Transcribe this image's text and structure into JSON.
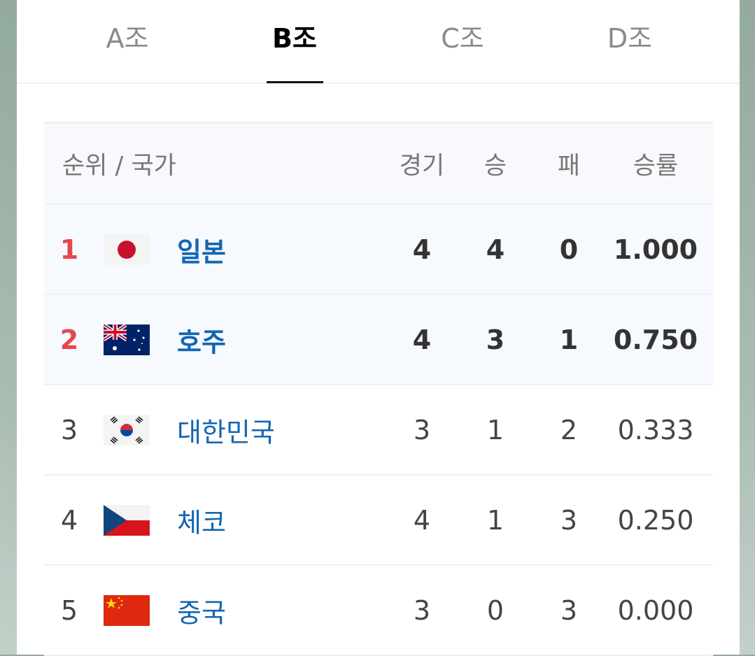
{
  "tabs": [
    {
      "label": "A조"
    },
    {
      "label": "B조",
      "active": true
    },
    {
      "label": "C조"
    },
    {
      "label": "D조"
    }
  ],
  "table": {
    "headers": {
      "team": "순위 / 국가",
      "games": "경기",
      "wins": "승",
      "losses": "패",
      "pct": "승률"
    },
    "rows": [
      {
        "rank": "1",
        "flag": "japan-flag",
        "name": "일본",
        "games": "4",
        "wins": "4",
        "losses": "0",
        "pct": "1.000",
        "highlight": true
      },
      {
        "rank": "2",
        "flag": "australia-flag",
        "name": "호주",
        "games": "4",
        "wins": "3",
        "losses": "1",
        "pct": "0.750",
        "highlight": true
      },
      {
        "rank": "3",
        "flag": "south-korea-flag",
        "name": "대한민국",
        "games": "3",
        "wins": "1",
        "losses": "2",
        "pct": "0.333",
        "highlight": false
      },
      {
        "rank": "4",
        "flag": "czech-flag",
        "name": "체코",
        "games": "4",
        "wins": "1",
        "losses": "3",
        "pct": "0.250",
        "highlight": false
      },
      {
        "rank": "5",
        "flag": "china-flag",
        "name": "중국",
        "games": "3",
        "wins": "0",
        "losses": "3",
        "pct": "0.000",
        "highlight": false
      }
    ]
  },
  "colors": {
    "accent_rank": "#e5474f",
    "team_link": "#1466b2",
    "active_tab": "#000000"
  }
}
